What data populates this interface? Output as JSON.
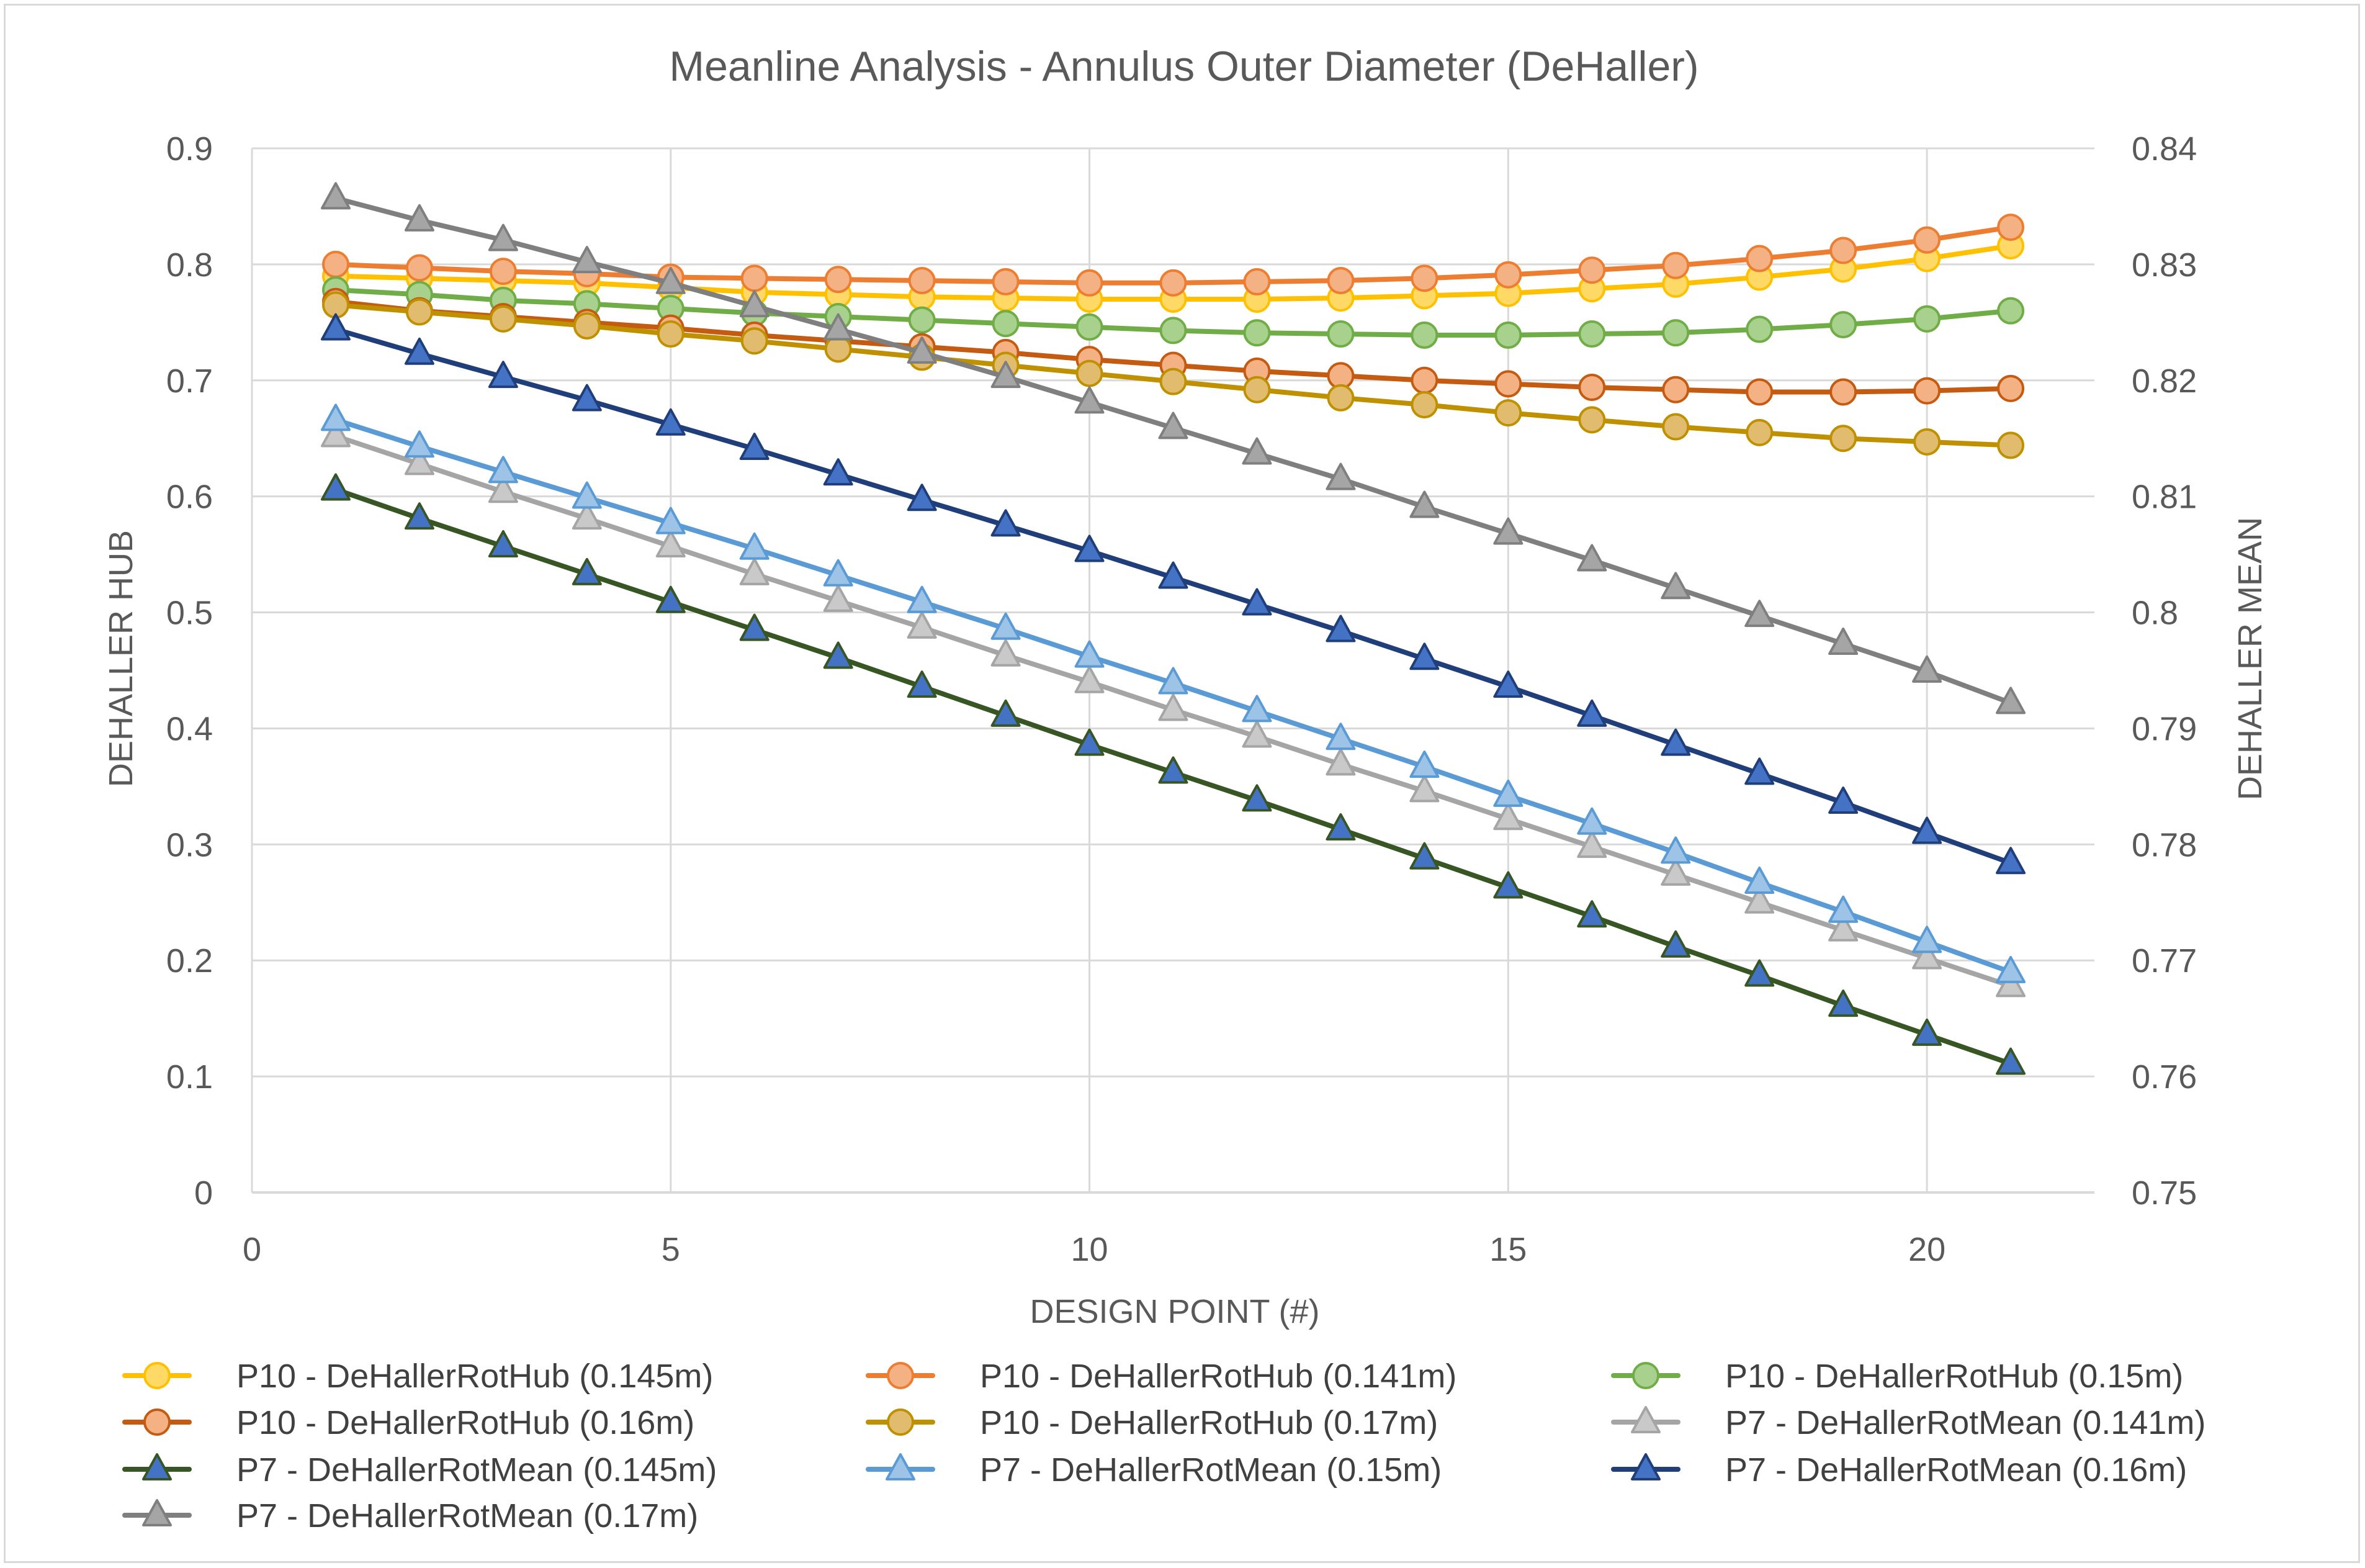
{
  "chart_data": {
    "type": "line",
    "title": "Meanline Analysis - Annulus Outer Diameter (DeHaller)",
    "xlabel": "DESIGN POINT (#)",
    "ylabel": "DEHALLER HUB",
    "y2label": "DEHALLER MEAN",
    "xlim": [
      0,
      22
    ],
    "ylim": [
      0,
      0.9
    ],
    "y2lim": [
      0.75,
      0.84
    ],
    "x_ticks": [
      "0",
      "5",
      "10",
      "15",
      "20"
    ],
    "y_ticks": [
      "0",
      "0.1",
      "0.2",
      "0.3",
      "0.4",
      "0.5",
      "0.6",
      "0.7",
      "0.8",
      "0.9"
    ],
    "y2_ticks": [
      "0.75",
      "0.76",
      "0.77",
      "0.78",
      "0.79",
      "0.8",
      "0.81",
      "0.82",
      "0.83",
      "0.84"
    ],
    "grid": true,
    "legend_position": "bottom",
    "x": [
      1,
      2,
      3,
      4,
      5,
      6,
      7,
      8,
      9,
      10,
      11,
      12,
      13,
      14,
      15,
      16,
      17,
      18,
      19,
      20,
      21
    ],
    "series": [
      {
        "name": "P10 - DeHallerRotHub (0.145m)",
        "axis": "left",
        "marker": "circle",
        "color": "#ffc000",
        "fill": "#ffd966",
        "values": [
          0.79,
          0.788,
          0.786,
          0.784,
          0.78,
          0.776,
          0.774,
          0.772,
          0.771,
          0.77,
          0.77,
          0.77,
          0.771,
          0.773,
          0.775,
          0.779,
          0.783,
          0.789,
          0.796,
          0.805,
          0.816
        ]
      },
      {
        "name": "P10 - DeHallerRotHub (0.141m)",
        "axis": "left",
        "marker": "circle",
        "color": "#ed7d31",
        "fill": "#f4b183",
        "values": [
          0.8,
          0.797,
          0.794,
          0.792,
          0.789,
          0.788,
          0.787,
          0.786,
          0.785,
          0.784,
          0.784,
          0.785,
          0.786,
          0.788,
          0.791,
          0.795,
          0.799,
          0.805,
          0.812,
          0.821,
          0.832
        ]
      },
      {
        "name": "P10 - DeHallerRotHub (0.15m)",
        "axis": "left",
        "marker": "circle",
        "color": "#70ad47",
        "fill": "#a9d18e",
        "values": [
          0.778,
          0.774,
          0.769,
          0.766,
          0.762,
          0.758,
          0.755,
          0.752,
          0.749,
          0.746,
          0.743,
          0.741,
          0.74,
          0.739,
          0.739,
          0.74,
          0.741,
          0.744,
          0.748,
          0.753,
          0.76
        ]
      },
      {
        "name": "P10 - DeHallerRotHub (0.16m)",
        "axis": "left",
        "marker": "circle",
        "color": "#c55a11",
        "fill": "#f4b183",
        "values": [
          0.768,
          0.76,
          0.755,
          0.75,
          0.745,
          0.739,
          0.734,
          0.729,
          0.724,
          0.718,
          0.713,
          0.708,
          0.704,
          0.7,
          0.697,
          0.694,
          0.692,
          0.69,
          0.69,
          0.691,
          0.693
        ]
      },
      {
        "name": "P10 - DeHallerRotHub (0.17m)",
        "axis": "left",
        "marker": "circle",
        "color": "#bf9000",
        "fill": "#e2bc6e",
        "values": [
          0.765,
          0.759,
          0.753,
          0.747,
          0.74,
          0.734,
          0.727,
          0.72,
          0.713,
          0.706,
          0.699,
          0.692,
          0.685,
          0.679,
          0.672,
          0.666,
          0.66,
          0.655,
          0.65,
          0.647,
          0.644
        ]
      },
      {
        "name": "P7 - DeHallerRotMean (0.141m)",
        "axis": "left",
        "marker": "triangle",
        "color": "#a5a5a5",
        "fill": "#c9c9c9",
        "values": [
          0.652,
          0.628,
          0.604,
          0.581,
          0.557,
          0.533,
          0.51,
          0.487,
          0.463,
          0.44,
          0.416,
          0.393,
          0.369,
          0.346,
          0.322,
          0.298,
          0.274,
          0.25,
          0.226,
          0.202,
          0.178
        ]
      },
      {
        "name": "P7 - DeHallerRotMean (0.145m)",
        "axis": "left",
        "marker": "triangle",
        "color": "#375623",
        "fill": "#4472c4",
        "values": [
          0.606,
          0.581,
          0.557,
          0.533,
          0.509,
          0.485,
          0.461,
          0.436,
          0.411,
          0.386,
          0.362,
          0.338,
          0.313,
          0.288,
          0.263,
          0.238,
          0.212,
          0.187,
          0.161,
          0.136,
          0.111
        ]
      },
      {
        "name": "P7 - DeHallerRotMean (0.15m)",
        "axis": "left",
        "marker": "triangle",
        "color": "#5b9bd5",
        "fill": "#9dc3e6",
        "values": [
          0.666,
          0.643,
          0.621,
          0.599,
          0.577,
          0.555,
          0.532,
          0.509,
          0.486,
          0.462,
          0.439,
          0.415,
          0.391,
          0.367,
          0.342,
          0.318,
          0.293,
          0.267,
          0.242,
          0.216,
          0.19
        ]
      },
      {
        "name": "P7 - DeHallerRotMean (0.16m)",
        "axis": "left",
        "marker": "triangle",
        "color": "#1f3e7a",
        "fill": "#4472c4",
        "values": [
          0.744,
          0.723,
          0.703,
          0.683,
          0.662,
          0.641,
          0.619,
          0.597,
          0.575,
          0.553,
          0.53,
          0.507,
          0.484,
          0.46,
          0.436,
          0.411,
          0.386,
          0.361,
          0.336,
          0.31,
          0.284
        ]
      },
      {
        "name": "P7 - DeHallerRotMean (0.17m)",
        "axis": "right",
        "marker": "triangle",
        "color": "#7f7f7f",
        "fill": "#a5a5a5",
        "values": [
          0.8357,
          0.8338,
          0.8321,
          0.8302,
          0.8284,
          0.8264,
          0.8244,
          0.8224,
          0.8203,
          0.8181,
          0.8159,
          0.8137,
          0.8115,
          0.8091,
          0.8068,
          0.8045,
          0.8021,
          0.7997,
          0.7973,
          0.7949,
          0.7922
        ]
      }
    ]
  }
}
